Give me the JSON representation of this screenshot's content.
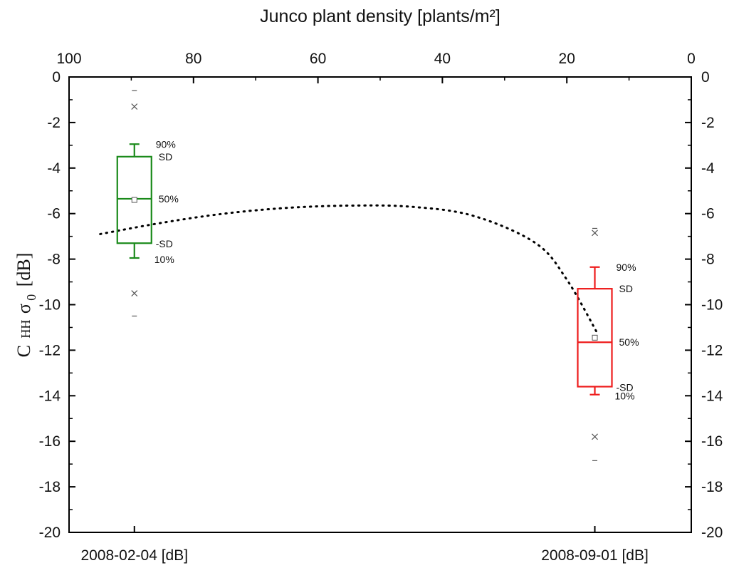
{
  "chart_data": {
    "type": "box",
    "top_axis": {
      "label": "Junco plant density [plants/m²]",
      "range": [
        100,
        0
      ],
      "ticks": [
        "100",
        "80",
        "60",
        "40",
        "20",
        "0"
      ],
      "tick_values": [
        100,
        80,
        60,
        40,
        20,
        0
      ]
    },
    "y_axis": {
      "label": "C HH σ0 [dB]",
      "label_main": "C",
      "label_pol": "HH",
      "label_sym": "σ",
      "label_sub": "0",
      "label_unit": "[dB]",
      "range": [
        -20,
        0
      ],
      "ticks": [
        "0",
        "-2",
        "-4",
        "-6",
        "-8",
        "-10",
        "-12",
        "-14",
        "-16",
        "-18",
        "-20"
      ],
      "tick_values": [
        0,
        -2,
        -4,
        -6,
        -8,
        -10,
        -12,
        -14,
        -16,
        -18,
        -20
      ]
    },
    "categories": [
      "2008-02-04 [dB]",
      "2008-09-01 [dB]"
    ],
    "boxes": [
      {
        "category": "2008-02-04 [dB]",
        "density": 89.5,
        "color": "#1a8a1a",
        "p10": -7.95,
        "minus_sd": -7.3,
        "median": -5.35,
        "mean": -5.4,
        "plus_sd": -3.5,
        "p90": -2.95,
        "outliers_x": [
          -1.3,
          -9.5
        ],
        "extremes_dash": [
          -0.6,
          -10.5
        ],
        "labels": {
          "p90": "90%",
          "sd": "SD",
          "p50": "50%",
          "msd": "-SD",
          "p10": "10%"
        }
      },
      {
        "category": "2008-09-01 [dB]",
        "density": 15.5,
        "color": "#ee1c1c",
        "p10": -13.95,
        "minus_sd": -13.6,
        "median": -11.65,
        "mean": -11.45,
        "plus_sd": -9.3,
        "p90": -8.35,
        "outliers_x": [
          -6.85,
          -15.8
        ],
        "extremes_dash": [
          -6.65,
          -16.85
        ],
        "labels": {
          "p90": "90%",
          "sd": "SD",
          "p50": "50%",
          "msd": "-SD",
          "p10": "10%"
        }
      }
    ],
    "trend": {
      "style": "dotted",
      "x": [
        95,
        85,
        75,
        65,
        55,
        45,
        35,
        25,
        20,
        15
      ],
      "y": [
        -6.9,
        -6.4,
        -6.0,
        -5.75,
        -5.65,
        -5.7,
        -6.1,
        -7.3,
        -8.9,
        -11.3
      ]
    }
  }
}
